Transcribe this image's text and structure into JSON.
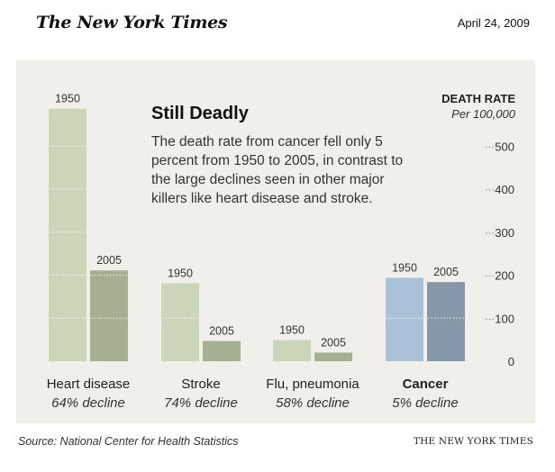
{
  "header": {
    "masthead": "The New York Times",
    "date": "April 24, 2009"
  },
  "chart_data": {
    "type": "bar",
    "title": "Still Deadly",
    "subtitle": "The death rate from cancer fell only 5 percent from 1950 to 2005, in contrast to the large declines seen in other major killers like heart disease and stroke.",
    "ylabel": "DEATH RATE",
    "yunit": "Per 100,000",
    "ylim": [
      0,
      580
    ],
    "yticks": [
      0,
      100,
      200,
      300,
      400,
      500
    ],
    "series": [
      {
        "name": "1950",
        "values": [
          587,
          181,
          49,
          194
        ]
      },
      {
        "name": "2005",
        "values": [
          211,
          47,
          20,
          184
        ]
      }
    ],
    "categories": [
      {
        "name": "Heart disease",
        "decline": "64% decline",
        "bold": false,
        "colors": [
          "#cbd6b8",
          "#a4b08f"
        ]
      },
      {
        "name": "Stroke",
        "decline": "74% decline",
        "bold": false,
        "colors": [
          "#cbd6b8",
          "#a4b08f"
        ]
      },
      {
        "name": "Flu, pneumonia",
        "decline": "58% decline",
        "bold": false,
        "colors": [
          "#cbd6b8",
          "#a4b08f"
        ]
      },
      {
        "name": "Cancer",
        "decline": "5% decline",
        "bold": true,
        "colors": [
          "#a9c2d8",
          "#8498aa"
        ]
      }
    ]
  },
  "footer": {
    "source": "Source: National Center for Health Statistics",
    "credit": "THE NEW YORK TIMES"
  }
}
